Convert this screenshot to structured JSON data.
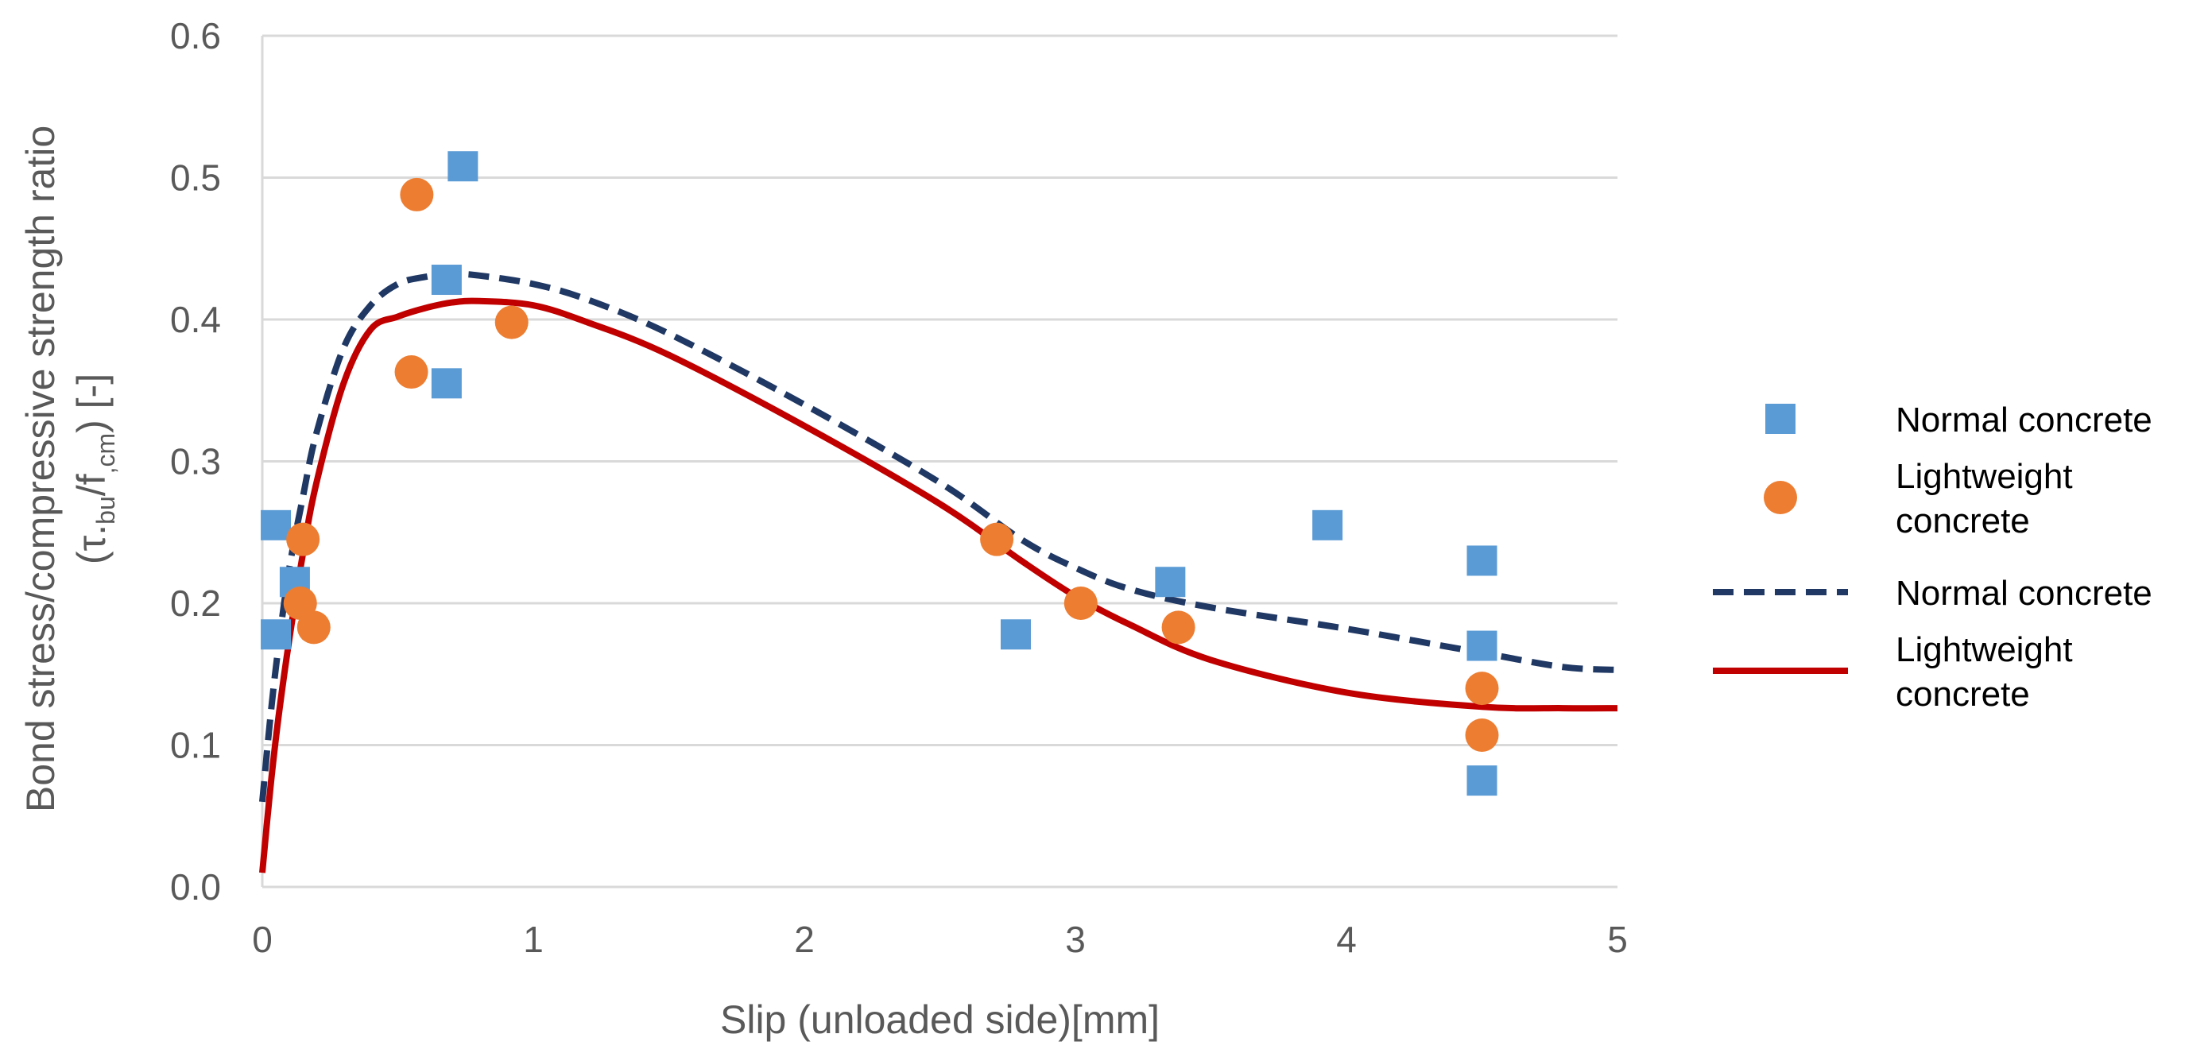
{
  "chart_data": {
    "type": "scatter",
    "title": "",
    "xlabel": "Slip (unloaded side)[mm]",
    "ylabel": {
      "line1": "Bond stress/compressive strength ratio",
      "line2_prefix": "(τ.",
      "line2_sub1": "bu",
      "line2_mid": "/f",
      "line2_sub2": ",cm",
      "line2_suffix": ") [-]"
    },
    "xlim": [
      0,
      5
    ],
    "ylim": [
      0,
      0.6
    ],
    "x_ticks": [
      0,
      1,
      2,
      3,
      4,
      5
    ],
    "x_tick_labels": [
      "0",
      "1",
      "2",
      "3",
      "4",
      "5"
    ],
    "y_ticks": [
      0,
      0.1,
      0.2,
      0.3,
      0.4,
      0.5,
      0.6
    ],
    "y_tick_labels": [
      "0.0",
      "0.1",
      "0.2",
      "0.3",
      "0.4",
      "0.5",
      "0.6"
    ],
    "grid": true,
    "legend_position": "right",
    "series": [
      {
        "name": "Normal concrete",
        "kind": "scatter",
        "marker": "square",
        "color": "#5B9BD5",
        "points": [
          [
            0.05,
            0.255
          ],
          [
            0.05,
            0.178
          ],
          [
            0.12,
            0.215
          ],
          [
            0.68,
            0.428
          ],
          [
            0.68,
            0.355
          ],
          [
            0.74,
            0.508
          ],
          [
            2.78,
            0.178
          ],
          [
            3.35,
            0.215
          ],
          [
            3.93,
            0.255
          ],
          [
            4.5,
            0.23
          ],
          [
            4.5,
            0.17
          ],
          [
            4.5,
            0.075
          ]
        ]
      },
      {
        "name": "Lightweight concrete",
        "kind": "scatter",
        "marker": "circle",
        "color": "#ED7D31",
        "points": [
          [
            0.15,
            0.245
          ],
          [
            0.14,
            0.2
          ],
          [
            0.19,
            0.183
          ],
          [
            0.55,
            0.363
          ],
          [
            0.57,
            0.488
          ],
          [
            0.92,
            0.398
          ],
          [
            2.71,
            0.245
          ],
          [
            3.02,
            0.2
          ],
          [
            3.38,
            0.183
          ],
          [
            4.5,
            0.14
          ],
          [
            4.5,
            0.107
          ]
        ]
      },
      {
        "name": "Normal concrete",
        "kind": "line",
        "dash": true,
        "color": "#1F3864",
        "x": [
          0,
          0.03,
          0.06,
          0.1,
          0.15,
          0.2,
          0.3,
          0.4,
          0.5,
          0.6,
          0.7,
          0.8,
          1.0,
          1.2,
          1.5,
          2.0,
          2.5,
          2.8,
          3.0,
          3.2,
          3.5,
          4.0,
          4.5,
          4.8,
          5.0
        ],
        "y": [
          0.06,
          0.12,
          0.17,
          0.225,
          0.275,
          0.32,
          0.38,
          0.41,
          0.425,
          0.43,
          0.432,
          0.431,
          0.425,
          0.414,
          0.39,
          0.34,
          0.285,
          0.245,
          0.225,
          0.21,
          0.197,
          0.182,
          0.165,
          0.155,
          0.153
        ]
      },
      {
        "name": "Lightweight concrete",
        "kind": "line",
        "dash": false,
        "color": "#C00000",
        "x": [
          0,
          0.03,
          0.06,
          0.1,
          0.15,
          0.2,
          0.3,
          0.4,
          0.5,
          0.6,
          0.7,
          0.8,
          1.0,
          1.2,
          1.5,
          2.0,
          2.5,
          2.8,
          3.0,
          3.2,
          3.5,
          4.0,
          4.5,
          4.8,
          5.0
        ],
        "y": [
          0.01,
          0.07,
          0.12,
          0.175,
          0.235,
          0.285,
          0.355,
          0.393,
          0.402,
          0.408,
          0.412,
          0.413,
          0.41,
          0.398,
          0.375,
          0.325,
          0.27,
          0.23,
          0.205,
          0.185,
          0.16,
          0.137,
          0.127,
          0.126,
          0.126
        ]
      }
    ],
    "legend": [
      {
        "lines": [
          "Normal concrete"
        ]
      },
      {
        "lines": [
          "Lightweight",
          "concrete"
        ]
      },
      {
        "lines": [
          "Normal concrete"
        ]
      },
      {
        "lines": [
          "Lightweight",
          "concrete"
        ]
      }
    ]
  }
}
